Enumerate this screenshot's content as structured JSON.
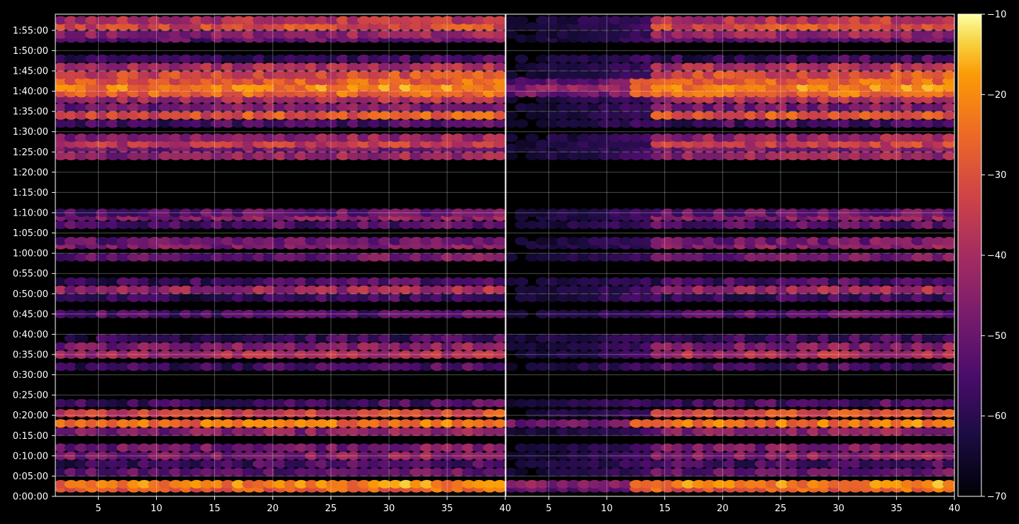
{
  "chart_data": {
    "type": "heatmap",
    "title": "",
    "xlabel": "",
    "ylabel": "",
    "panels": [
      {
        "name": "",
        "x_range": [
          1.3,
          40
        ],
        "x_ticks": [
          5,
          10,
          15,
          20,
          25,
          30,
          35,
          40
        ]
      },
      {
        "name": "",
        "x_range": [
          1.3,
          40
        ],
        "x_ticks": [
          5,
          10,
          15,
          20,
          25,
          30,
          35,
          40
        ]
      }
    ],
    "y_range_seconds": [
      0,
      7140
    ],
    "y_ticks": [
      "0:00:00",
      "0:05:00",
      "0:10:00",
      "0:15:00",
      "0:20:00",
      "0:25:00",
      "0:30:00",
      "0:35:00",
      "0:40:00",
      "0:45:00",
      "0:50:00",
      "0:55:00",
      "1:00:00",
      "1:05:00",
      "1:10:00",
      "1:15:00",
      "1:20:00",
      "1:25:00",
      "1:30:00",
      "1:35:00",
      "1:40:00",
      "1:45:00",
      "1:50:00",
      "1:55:00"
    ],
    "grid": true,
    "colormap": "inferno",
    "colorbar": {
      "min": -70,
      "max": -10,
      "ticks": [
        -10,
        -20,
        -30,
        -40,
        -50,
        -60,
        -70
      ]
    },
    "bands": [
      {
        "time": "0:02:00",
        "level": -28,
        "panel_b": "full"
      },
      {
        "time": "0:03:00",
        "level": -22,
        "panel_b": "full"
      },
      {
        "time": "0:06:00",
        "level": -52,
        "panel_b": "partial"
      },
      {
        "time": "0:08:00",
        "level": -56,
        "panel_b": "partial"
      },
      {
        "time": "0:10:00",
        "level": -46,
        "panel_b": "partial"
      },
      {
        "time": "0:12:00",
        "level": -48,
        "panel_b": "partial"
      },
      {
        "time": "0:16:00",
        "level": -46,
        "panel_b": "partial"
      },
      {
        "time": "0:18:00",
        "level": -24,
        "panel_b": "full"
      },
      {
        "time": "0:20:30",
        "level": -32,
        "panel_b": "partial"
      },
      {
        "time": "0:23:00",
        "level": -56,
        "panel_b": "partial"
      },
      {
        "time": "0:32:00",
        "level": -56,
        "panel_b": "partial"
      },
      {
        "time": "0:35:00",
        "level": -40,
        "panel_b": "partial"
      },
      {
        "time": "0:37:00",
        "level": -46,
        "panel_b": "partial"
      },
      {
        "time": "0:39:00",
        "level": -58,
        "panel_b": "partial"
      },
      {
        "time": "0:45:00",
        "level": -54,
        "panel_b": "partial"
      },
      {
        "time": "0:49:00",
        "level": -58,
        "panel_b": "partial"
      },
      {
        "time": "0:51:00",
        "level": -42,
        "panel_b": "partial"
      },
      {
        "time": "0:53:00",
        "level": -56,
        "panel_b": "partial"
      },
      {
        "time": "0:59:00",
        "level": -50,
        "panel_b": "partial"
      },
      {
        "time": "1:02:00",
        "level": -46,
        "panel_b": "partial"
      },
      {
        "time": "1:03:00",
        "level": -50,
        "panel_b": "partial"
      },
      {
        "time": "1:07:00",
        "level": -54,
        "panel_b": "partial"
      },
      {
        "time": "1:09:00",
        "level": -46,
        "panel_b": "partial"
      },
      {
        "time": "1:10:00",
        "level": -52,
        "panel_b": "partial"
      },
      {
        "time": "1:24:00",
        "level": -44,
        "panel_b": "partial"
      },
      {
        "time": "1:26:00",
        "level": -48,
        "panel_b": "partial"
      },
      {
        "time": "1:27:00",
        "level": -36,
        "panel_b": "partial"
      },
      {
        "time": "1:28:30",
        "level": -44,
        "panel_b": "partial"
      },
      {
        "time": "1:32:00",
        "level": -56,
        "panel_b": "partial"
      },
      {
        "time": "1:34:00",
        "level": -30,
        "panel_b": "partial"
      },
      {
        "time": "1:36:00",
        "level": -48,
        "panel_b": "partial"
      },
      {
        "time": "1:38:00",
        "level": -40,
        "panel_b": "partial"
      },
      {
        "time": "1:39:30",
        "level": -26,
        "panel_b": "full"
      },
      {
        "time": "1:41:00",
        "level": -22,
        "panel_b": "full"
      },
      {
        "time": "1:42:30",
        "level": -28,
        "panel_b": "full"
      },
      {
        "time": "1:44:00",
        "level": -32,
        "panel_b": "partial"
      },
      {
        "time": "1:46:00",
        "level": -40,
        "panel_b": "partial"
      },
      {
        "time": "1:48:00",
        "level": -58,
        "panel_b": "partial"
      },
      {
        "time": "1:53:00",
        "level": -52,
        "panel_b": "partial"
      },
      {
        "time": "1:54:00",
        "level": -44,
        "panel_b": "partial"
      },
      {
        "time": "1:56:00",
        "level": -32,
        "panel_b": "partial"
      },
      {
        "time": "1:57:30",
        "level": -38,
        "panel_b": "partial"
      }
    ]
  }
}
